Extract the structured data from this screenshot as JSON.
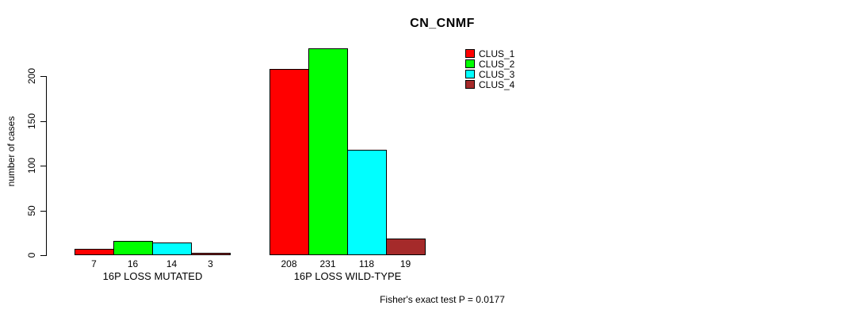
{
  "chart_data": {
    "type": "bar",
    "title": "CN_CNMF",
    "ylabel": "number of cases",
    "xlabel": "",
    "categories": [
      "16P LOSS MUTATED",
      "16P LOSS WILD-TYPE"
    ],
    "series": [
      {
        "name": "CLUS_1",
        "color": "#FF0000",
        "values": [
          7,
          208
        ]
      },
      {
        "name": "CLUS_2",
        "color": "#00FF00",
        "values": [
          16,
          231
        ]
      },
      {
        "name": "CLUS_3",
        "color": "#00FFFF",
        "values": [
          14,
          118
        ]
      },
      {
        "name": "CLUS_4",
        "color": "#A52A2A",
        "values": [
          3,
          19
        ]
      }
    ],
    "yticks": [
      0,
      50,
      100,
      150,
      200
    ],
    "ylim": [
      0,
      200
    ],
    "grid": false,
    "bar_value_labels_shown": true,
    "legend_position": "top-right",
    "legend_entries": [
      "CLUS_1",
      "CLUS_2",
      "CLUS_3",
      "CLUS_4"
    ],
    "annotation": "Fisher's exact test P = 0.0177",
    "axis_color": "#000000",
    "background_color": "#FFFFFF"
  }
}
